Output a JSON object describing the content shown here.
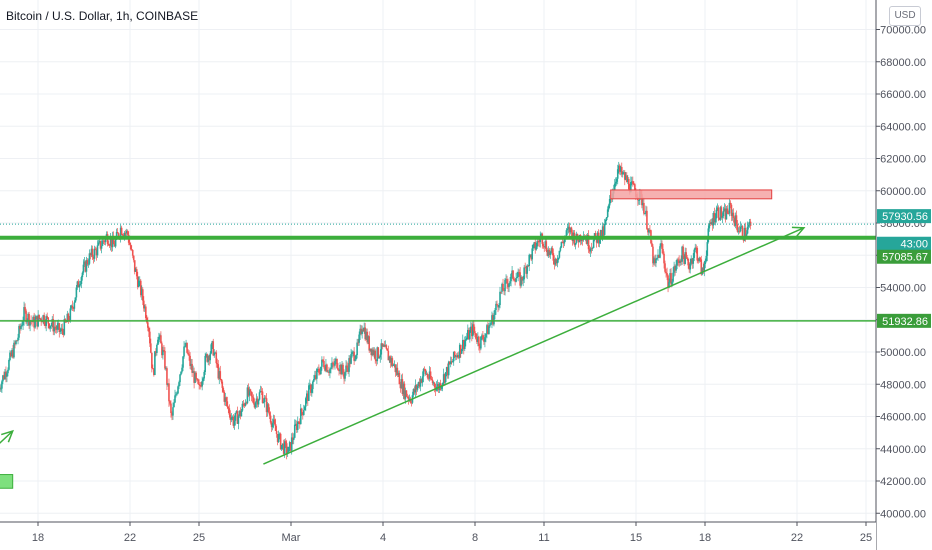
{
  "header": {
    "title": "Bitcoin / U.S. Dollar, 1h, COINBASE",
    "currency_button": "USD"
  },
  "colors": {
    "up": "#26a69a",
    "down": "#ef5350",
    "line_green": "#3cae3c",
    "resistance_fill": "#f4a3a3",
    "resistance_stroke": "#e34040",
    "grid": "#eef0f4",
    "axis_text": "#50535e"
  },
  "chart_data": {
    "type": "candlestick",
    "title": "Bitcoin / U.S. Dollar, 1h, COINBASE",
    "ylim": [
      39500,
      71200
    ],
    "y_ticks": [
      "40000.00",
      "42000.00",
      "44000.00",
      "46000.00",
      "48000.00",
      "50000.00",
      "52000.00",
      "54000.00",
      "56000.00",
      "58000.00",
      "60000.00",
      "62000.00",
      "64000.00",
      "66000.00",
      "68000.00",
      "70000.00"
    ],
    "x_ticks": [
      {
        "label": "18",
        "day": 18
      },
      {
        "label": "22",
        "day": 22
      },
      {
        "label": "25",
        "day": 25
      },
      {
        "label": "Mar",
        "day": 29
      },
      {
        "label": "4",
        "day": 33
      },
      {
        "label": "8",
        "day": 37
      },
      {
        "label": "11",
        "day": 40
      },
      {
        "label": "15",
        "day": 44
      },
      {
        "label": "18",
        "day": 47
      },
      {
        "label": "22",
        "day": 51
      },
      {
        "label": "25",
        "day": 54
      }
    ],
    "close_path": [
      {
        "day": 16.3,
        "price": 47800
      },
      {
        "day": 16.7,
        "price": 49200
      },
      {
        "day": 17.1,
        "price": 50800
      },
      {
        "day": 17.4,
        "price": 52400
      },
      {
        "day": 17.8,
        "price": 51800
      },
      {
        "day": 18.2,
        "price": 52200
      },
      {
        "day": 18.6,
        "price": 51700
      },
      {
        "day": 19.0,
        "price": 51200
      },
      {
        "day": 19.4,
        "price": 52300
      },
      {
        "day": 19.8,
        "price": 54500
      },
      {
        "day": 20.2,
        "price": 55800
      },
      {
        "day": 20.6,
        "price": 56400
      },
      {
        "day": 21.0,
        "price": 57200
      },
      {
        "day": 21.3,
        "price": 56600
      },
      {
        "day": 21.6,
        "price": 57700
      },
      {
        "day": 21.9,
        "price": 57300
      },
      {
        "day": 22.2,
        "price": 55200
      },
      {
        "day": 22.5,
        "price": 53600
      },
      {
        "day": 22.8,
        "price": 51800
      },
      {
        "day": 23.0,
        "price": 48500
      },
      {
        "day": 23.2,
        "price": 51200
      },
      {
        "day": 23.5,
        "price": 49500
      },
      {
        "day": 23.8,
        "price": 45800
      },
      {
        "day": 24.1,
        "price": 48200
      },
      {
        "day": 24.4,
        "price": 50400
      },
      {
        "day": 24.7,
        "price": 48800
      },
      {
        "day": 25.0,
        "price": 47600
      },
      {
        "day": 25.3,
        "price": 49600
      },
      {
        "day": 25.6,
        "price": 50300
      },
      {
        "day": 25.9,
        "price": 48300
      },
      {
        "day": 26.2,
        "price": 46700
      },
      {
        "day": 26.5,
        "price": 45700
      },
      {
        "day": 26.8,
        "price": 46200
      },
      {
        "day": 27.1,
        "price": 47400
      },
      {
        "day": 27.4,
        "price": 46900
      },
      {
        "day": 27.7,
        "price": 47500
      },
      {
        "day": 28.0,
        "price": 46400
      },
      {
        "day": 28.3,
        "price": 45200
      },
      {
        "day": 28.6,
        "price": 44200
      },
      {
        "day": 28.9,
        "price": 43800
      },
      {
        "day": 29.2,
        "price": 45300
      },
      {
        "day": 29.5,
        "price": 46400
      },
      {
        "day": 29.8,
        "price": 47600
      },
      {
        "day": 30.1,
        "price": 48500
      },
      {
        "day": 30.4,
        "price": 49400
      },
      {
        "day": 30.7,
        "price": 48900
      },
      {
        "day": 31.0,
        "price": 49400
      },
      {
        "day": 31.3,
        "price": 48600
      },
      {
        "day": 31.6,
        "price": 49600
      },
      {
        "day": 31.9,
        "price": 50200
      },
      {
        "day": 32.1,
        "price": 51800
      },
      {
        "day": 32.4,
        "price": 50400
      },
      {
        "day": 32.7,
        "price": 49800
      },
      {
        "day": 33.0,
        "price": 50200
      },
      {
        "day": 33.3,
        "price": 49600
      },
      {
        "day": 33.6,
        "price": 48800
      },
      {
        "day": 33.9,
        "price": 47600
      },
      {
        "day": 34.2,
        "price": 47100
      },
      {
        "day": 34.5,
        "price": 47900
      },
      {
        "day": 34.8,
        "price": 48800
      },
      {
        "day": 35.1,
        "price": 48200
      },
      {
        "day": 35.4,
        "price": 47800
      },
      {
        "day": 35.7,
        "price": 48600
      },
      {
        "day": 36.0,
        "price": 49400
      },
      {
        "day": 36.3,
        "price": 50100
      },
      {
        "day": 36.6,
        "price": 50800
      },
      {
        "day": 36.9,
        "price": 51400
      },
      {
        "day": 37.2,
        "price": 50600
      },
      {
        "day": 37.5,
        "price": 51200
      },
      {
        "day": 37.8,
        "price": 52200
      },
      {
        "day": 38.1,
        "price": 53600
      },
      {
        "day": 38.4,
        "price": 54300
      },
      {
        "day": 38.7,
        "price": 54800
      },
      {
        "day": 39.0,
        "price": 54400
      },
      {
        "day": 39.3,
        "price": 55600
      },
      {
        "day": 39.6,
        "price": 56500
      },
      {
        "day": 39.9,
        "price": 57200
      },
      {
        "day": 40.2,
        "price": 56200
      },
      {
        "day": 40.5,
        "price": 55700
      },
      {
        "day": 40.8,
        "price": 56800
      },
      {
        "day": 41.1,
        "price": 57600
      },
      {
        "day": 41.4,
        "price": 56900
      },
      {
        "day": 41.7,
        "price": 57400
      },
      {
        "day": 42.0,
        "price": 56600
      },
      {
        "day": 42.3,
        "price": 57100
      },
      {
        "day": 42.6,
        "price": 57400
      },
      {
        "day": 42.9,
        "price": 59500
      },
      {
        "day": 43.2,
        "price": 61300
      },
      {
        "day": 43.5,
        "price": 60800
      },
      {
        "day": 43.8,
        "price": 60200
      },
      {
        "day": 44.1,
        "price": 59800
      },
      {
        "day": 44.3,
        "price": 59300
      },
      {
        "day": 44.6,
        "price": 57200
      },
      {
        "day": 44.8,
        "price": 55200
      },
      {
        "day": 45.1,
        "price": 56600
      },
      {
        "day": 45.4,
        "price": 54200
      },
      {
        "day": 45.7,
        "price": 55200
      },
      {
        "day": 46.0,
        "price": 56100
      },
      {
        "day": 46.3,
        "price": 55400
      },
      {
        "day": 46.6,
        "price": 56400
      },
      {
        "day": 46.9,
        "price": 54800
      },
      {
        "day": 47.2,
        "price": 57800
      },
      {
        "day": 47.5,
        "price": 58800
      },
      {
        "day": 47.8,
        "price": 58400
      },
      {
        "day": 48.1,
        "price": 58900
      },
      {
        "day": 48.4,
        "price": 57800
      },
      {
        "day": 48.7,
        "price": 57300
      },
      {
        "day": 49.0,
        "price": 57930
      }
    ],
    "lines": [
      {
        "name": "support",
        "price": 57085.67
      },
      {
        "name": "current",
        "price": 57930.56
      },
      {
        "name": "lower-support",
        "price": 51932.86
      }
    ],
    "trendline": {
      "start": {
        "day": 27.8,
        "price": 43050
      },
      "end": {
        "day": 51.3,
        "price": 57700
      }
    },
    "resistance_zone": {
      "x0": 42.9,
      "x1": 49.9,
      "y0": 59500,
      "y1": 60050
    },
    "left_marker_zone": {
      "x0": 16.3,
      "x1": 16.9,
      "y0": 41550,
      "y1": 42400
    },
    "left_arrow": {
      "start": {
        "day": 16.3,
        "price": 44300
      },
      "end": {
        "day": 16.9,
        "price": 45100
      }
    },
    "price_labels": [
      {
        "name": "current-price-label",
        "text": "57930.56",
        "price": 57930.56,
        "style": "current"
      },
      {
        "name": "countdown-label",
        "text": "43:00",
        "price": 57085.67,
        "style": "countdown"
      },
      {
        "name": "support-price-label",
        "text": "57085.67",
        "price": 57085.67,
        "style": "support"
      },
      {
        "name": "lower-support-price-label",
        "text": "51932.86",
        "price": 51932.86,
        "style": "lower"
      }
    ]
  }
}
